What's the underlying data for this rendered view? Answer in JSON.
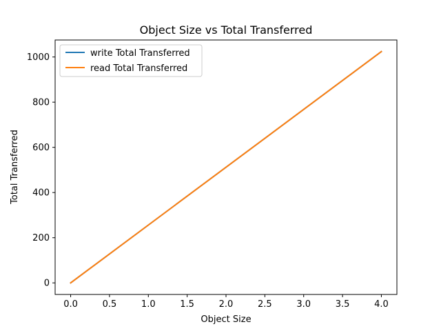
{
  "chart_data": {
    "type": "line",
    "title": "Object Size vs Total Transferred",
    "xlabel": "Object Size",
    "ylabel": "Total Transferred",
    "xlim": [
      -0.2,
      4.2
    ],
    "ylim": [
      -51.2,
      1075.2
    ],
    "xticks": [
      0.0,
      0.5,
      1.0,
      1.5,
      2.0,
      2.5,
      3.0,
      3.5,
      4.0
    ],
    "xtick_labels": [
      "0.0",
      "0.5",
      "1.0",
      "1.5",
      "2.0",
      "2.5",
      "3.0",
      "3.5",
      "4.0"
    ],
    "yticks": [
      0,
      200,
      400,
      600,
      800,
      1000
    ],
    "ytick_labels": [
      "0",
      "200",
      "400",
      "600",
      "800",
      "1000"
    ],
    "grid": false,
    "legend_position": "top-left",
    "series": [
      {
        "name": "write Total Transferred",
        "color": "#1f77b4",
        "x": [
          0,
          4
        ],
        "y": [
          0,
          1024
        ]
      },
      {
        "name": "read Total Transferred",
        "color": "#ff7f0e",
        "x": [
          0,
          4
        ],
        "y": [
          0,
          1024
        ]
      }
    ]
  }
}
